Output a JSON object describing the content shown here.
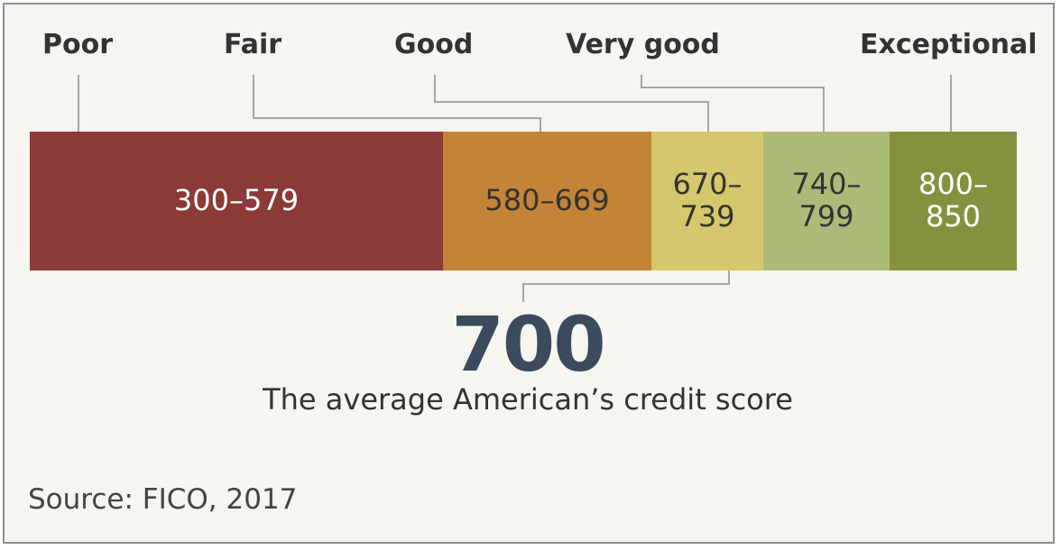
{
  "chart_data": {
    "type": "bar",
    "categories": [
      "Poor",
      "Fair",
      "Good",
      "Very good",
      "Exceptional"
    ],
    "ranges": [
      "300–579",
      "580–669",
      "670–\n739",
      "740–\n799",
      "800–\n850"
    ],
    "range_values": [
      [
        300,
        579
      ],
      [
        580,
        669
      ],
      [
        670,
        739
      ],
      [
        740,
        799
      ],
      [
        800,
        850
      ]
    ],
    "colors": [
      "#8b3a38",
      "#c48437",
      "#d5c76c",
      "#aabb78",
      "#85913f"
    ],
    "text_colors": [
      "#ffffff",
      "#333333",
      "#333333",
      "#333333",
      "#ffffff"
    ],
    "xlim": [
      300,
      850
    ],
    "highlight": {
      "value": 700,
      "label": "700",
      "caption": "The average American’s credit score"
    },
    "source": "Source: FICO, 2017"
  }
}
